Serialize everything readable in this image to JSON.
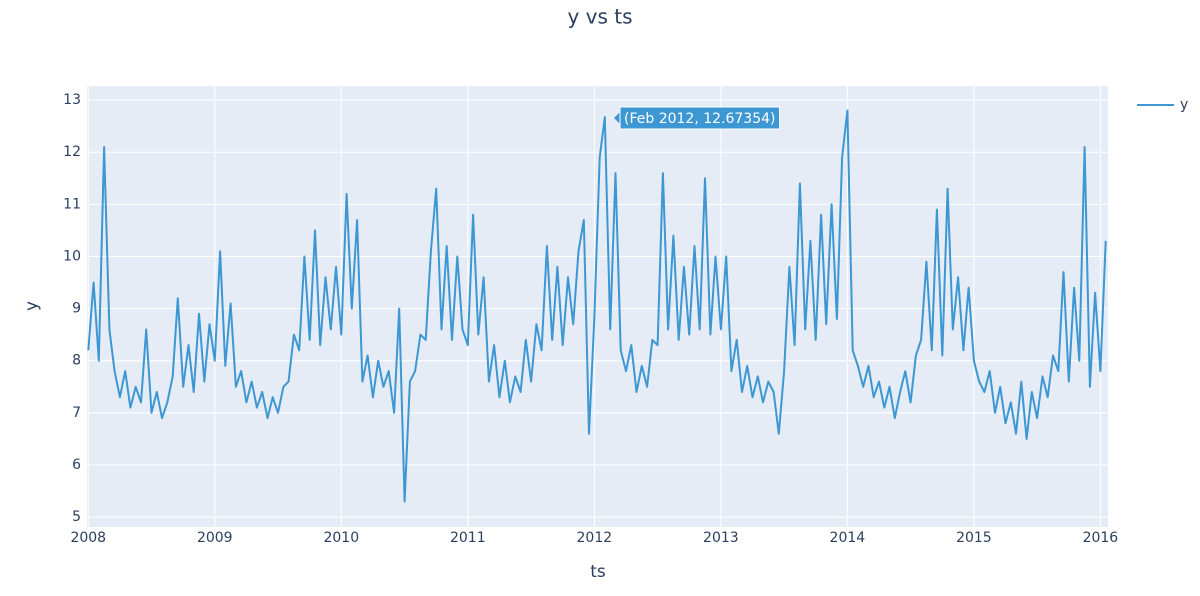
{
  "chart_data": {
    "type": "line",
    "title": "y vs ts",
    "x_label": "ts",
    "y_label": "y",
    "hover_label": "(Feb 2012, 12.67354)",
    "xlim": [
      2007.99,
      2016.06
    ],
    "xticks": [
      2008,
      2009,
      2010,
      2011,
      2012,
      2013,
      2014,
      2015,
      2016
    ],
    "ylim": [
      4.81,
      13.27
    ],
    "yticks": [
      5,
      6,
      7,
      8,
      9,
      10,
      11,
      12,
      13
    ],
    "grid": true,
    "legend": "top-right",
    "x": [
      2008,
      2008.042,
      2008.083,
      2008.125,
      2008.167,
      2008.208,
      2008.25,
      2008.292,
      2008.333,
      2008.375,
      2008.417,
      2008.458,
      2008.5,
      2008.542,
      2008.583,
      2008.625,
      2008.667,
      2008.708,
      2008.75,
      2008.792,
      2008.833,
      2008.875,
      2008.917,
      2008.958,
      2009,
      2009.042,
      2009.083,
      2009.125,
      2009.167,
      2009.208,
      2009.25,
      2009.292,
      2009.333,
      2009.375,
      2009.417,
      2009.458,
      2009.5,
      2009.542,
      2009.583,
      2009.625,
      2009.667,
      2009.708,
      2009.75,
      2009.792,
      2009.833,
      2009.875,
      2009.917,
      2009.958,
      2010,
      2010.042,
      2010.083,
      2010.125,
      2010.167,
      2010.208,
      2010.25,
      2010.292,
      2010.333,
      2010.375,
      2010.417,
      2010.458,
      2010.5,
      2010.542,
      2010.583,
      2010.625,
      2010.667,
      2010.708,
      2010.75,
      2010.792,
      2010.833,
      2010.875,
      2010.917,
      2010.958,
      2011,
      2011.042,
      2011.083,
      2011.125,
      2011.167,
      2011.208,
      2011.25,
      2011.292,
      2011.333,
      2011.375,
      2011.417,
      2011.458,
      2011.5,
      2011.542,
      2011.583,
      2011.625,
      2011.667,
      2011.708,
      2011.75,
      2011.792,
      2011.833,
      2011.875,
      2011.917,
      2011.958,
      2012,
      2012.042,
      2012.083,
      2012.125,
      2012.167,
      2012.208,
      2012.25,
      2012.292,
      2012.333,
      2012.375,
      2012.417,
      2012.458,
      2012.5,
      2012.542,
      2012.583,
      2012.625,
      2012.667,
      2012.708,
      2012.75,
      2012.792,
      2012.833,
      2012.875,
      2012.917,
      2012.958,
      2013,
      2013.042,
      2013.083,
      2013.125,
      2013.167,
      2013.208,
      2013.25,
      2013.292,
      2013.333,
      2013.375,
      2013.417,
      2013.458,
      2013.5,
      2013.542,
      2013.583,
      2013.625,
      2013.667,
      2013.708,
      2013.75,
      2013.792,
      2013.833,
      2013.875,
      2013.917,
      2013.958,
      2014,
      2014.042,
      2014.083,
      2014.125,
      2014.167,
      2014.208,
      2014.25,
      2014.292,
      2014.333,
      2014.375,
      2014.417,
      2014.458,
      2014.5,
      2014.542,
      2014.583,
      2014.625,
      2014.667,
      2014.708,
      2014.75,
      2014.792,
      2014.833,
      2014.875,
      2014.917,
      2014.958,
      2015,
      2015.042,
      2015.083,
      2015.125,
      2015.167,
      2015.208,
      2015.25,
      2015.292,
      2015.333,
      2015.375,
      2015.417,
      2015.458,
      2015.5,
      2015.542,
      2015.583,
      2015.625,
      2015.667,
      2015.708,
      2015.75,
      2015.792,
      2015.833,
      2015.875,
      2015.917,
      2015.958,
      2016,
      2016.042
    ],
    "series": [
      {
        "name": "y",
        "color": "#3d97d3",
        "values": [
          8.2,
          9.5,
          8.0,
          12.1,
          8.6,
          7.8,
          7.3,
          7.8,
          7.1,
          7.5,
          7.2,
          8.6,
          7.0,
          7.4,
          6.9,
          7.2,
          7.7,
          9.2,
          7.5,
          8.3,
          7.4,
          8.9,
          7.6,
          8.7,
          8.0,
          10.1,
          7.9,
          9.1,
          7.5,
          7.8,
          7.2,
          7.6,
          7.1,
          7.4,
          6.9,
          7.3,
          7.0,
          7.5,
          7.6,
          8.5,
          8.2,
          10.0,
          8.4,
          10.5,
          8.3,
          9.6,
          8.6,
          9.8,
          8.5,
          11.2,
          9.0,
          10.7,
          7.6,
          8.1,
          7.3,
          8.0,
          7.5,
          7.8,
          7.0,
          9.0,
          5.3,
          7.6,
          7.8,
          8.5,
          8.4,
          10.1,
          11.3,
          8.6,
          10.2,
          8.4,
          10.0,
          8.6,
          8.3,
          10.8,
          8.5,
          9.6,
          7.6,
          8.3,
          7.3,
          8.0,
          7.2,
          7.7,
          7.4,
          8.4,
          7.6,
          8.7,
          8.2,
          10.2,
          8.4,
          9.8,
          8.3,
          9.6,
          8.7,
          10.1,
          10.7,
          6.6,
          8.8,
          11.9,
          12.67354,
          8.6,
          11.6,
          8.2,
          7.8,
          8.3,
          7.4,
          7.9,
          7.5,
          8.4,
          8.3,
          11.6,
          8.6,
          10.4,
          8.4,
          9.8,
          8.5,
          10.2,
          8.6,
          11.5,
          8.5,
          10.0,
          8.6,
          10.0,
          7.8,
          8.4,
          7.4,
          7.9,
          7.3,
          7.7,
          7.2,
          7.6,
          7.4,
          6.6,
          7.8,
          9.8,
          8.3,
          11.4,
          8.6,
          10.3,
          8.4,
          10.8,
          8.7,
          11.0,
          8.8,
          11.9,
          12.8,
          8.2,
          7.9,
          7.5,
          7.9,
          7.3,
          7.6,
          7.1,
          7.5,
          6.9,
          7.4,
          7.8,
          7.2,
          8.1,
          8.4,
          9.9,
          8.2,
          10.9,
          8.1,
          11.3,
          8.6,
          9.6,
          8.2,
          9.4,
          8.0,
          7.6,
          7.4,
          7.8,
          7.0,
          7.5,
          6.8,
          7.2,
          6.6,
          7.6,
          6.5,
          7.4,
          6.9,
          7.7,
          7.3,
          8.1,
          7.8,
          9.7,
          7.6,
          9.4,
          8.0,
          12.1,
          7.5,
          9.3,
          7.8,
          10.3
        ]
      }
    ]
  }
}
